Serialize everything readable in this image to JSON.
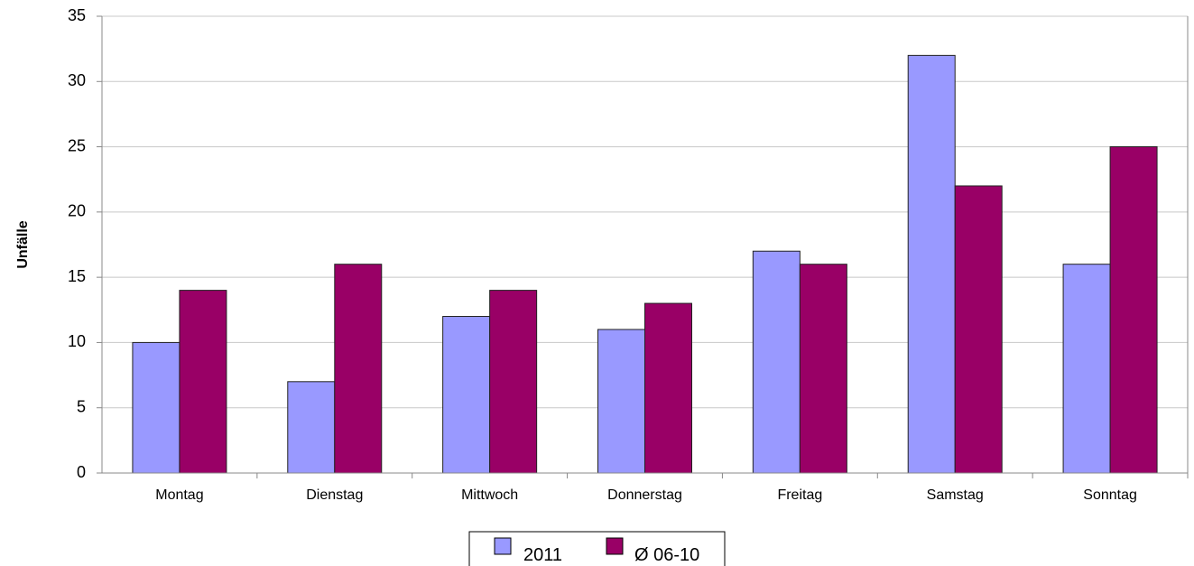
{
  "chart_data": {
    "type": "bar",
    "categories": [
      "Montag",
      "Dienstag",
      "Mittwoch",
      "Donnerstag",
      "Freitag",
      "Samstag",
      "Sonntag"
    ],
    "series": [
      {
        "name": "2011",
        "values": [
          10,
          7,
          12,
          11,
          17,
          32,
          16
        ],
        "color": "#9999ff"
      },
      {
        "name": "Ø 06-10",
        "values": [
          14,
          16,
          14,
          13,
          16,
          22,
          25
        ],
        "color": "#990066"
      }
    ],
    "xlabel": "",
    "ylabel": "Unfälle",
    "ylim": [
      0,
      35
    ],
    "yticks": [
      0,
      5,
      10,
      15,
      20,
      25,
      30,
      35
    ],
    "grid": true,
    "legend_position": "bottom-center"
  }
}
